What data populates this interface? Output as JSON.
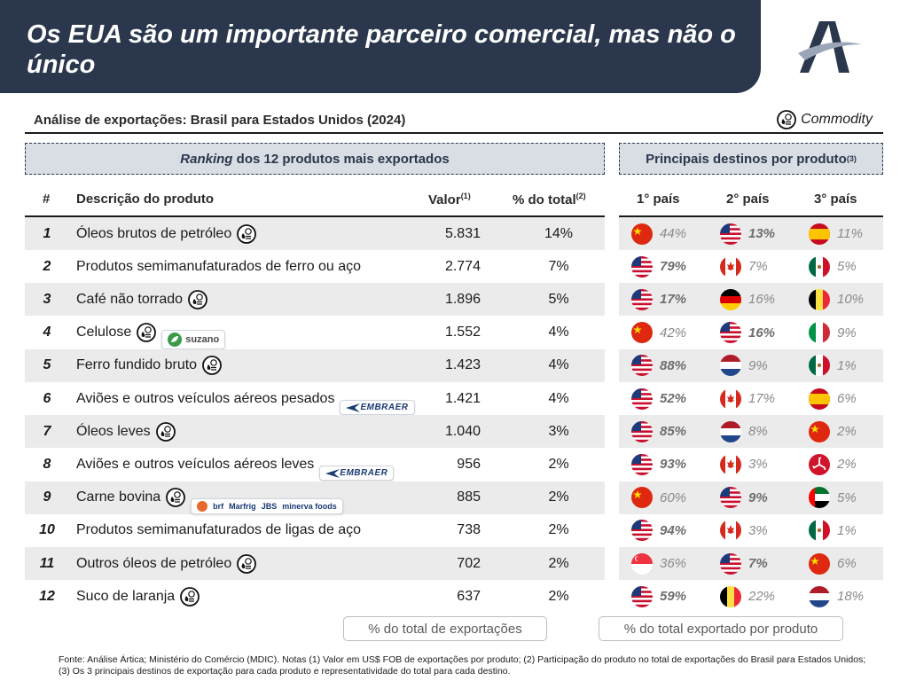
{
  "header": {
    "title": "Os EUA são um importante parceiro comercial, mas não o único"
  },
  "subtitle": "Análise de exportações: Brasil para Estados Unidos (2024)",
  "legend": {
    "commodity_label": "Commodity"
  },
  "ranking_section": {
    "title_italic": "Ranking",
    "title_rest": " dos 12 produtos mais exportados"
  },
  "destinations_section": {
    "title": "Principais destinos por produto",
    "note": "(3)"
  },
  "columns": {
    "rank": "#",
    "description": "Descrição do produto",
    "value": "Valor",
    "value_note": "(1)",
    "share": "% do total",
    "share_note": "(2)",
    "first": "1° país",
    "second": "2° país",
    "third": "3° país"
  },
  "products": [
    {
      "rank": "1",
      "name": "Óleos brutos de petróleo",
      "commodity": true,
      "value": "5.831",
      "share": "14%",
      "destinations": [
        {
          "flag": "china",
          "pct": "44%"
        },
        {
          "flag": "usa",
          "pct": "13%"
        },
        {
          "flag": "spain",
          "pct": "11%"
        }
      ]
    },
    {
      "rank": "2",
      "name": "Produtos semimanufaturados de ferro ou aço",
      "commodity": false,
      "value": "2.774",
      "share": "7%",
      "destinations": [
        {
          "flag": "usa",
          "pct": "79%"
        },
        {
          "flag": "canada",
          "pct": "7%"
        },
        {
          "flag": "mexico",
          "pct": "5%"
        }
      ]
    },
    {
      "rank": "3",
      "name": "Café não torrado",
      "commodity": true,
      "value": "1.896",
      "share": "5%",
      "destinations": [
        {
          "flag": "usa",
          "pct": "17%"
        },
        {
          "flag": "germany",
          "pct": "16%"
        },
        {
          "flag": "belgium",
          "pct": "10%"
        }
      ]
    },
    {
      "rank": "4",
      "name": "Celulose",
      "commodity": true,
      "brand": "suzano",
      "brand_label": "suzano",
      "value": "1.552",
      "share": "4%",
      "destinations": [
        {
          "flag": "china",
          "pct": "42%"
        },
        {
          "flag": "usa",
          "pct": "16%"
        },
        {
          "flag": "italy",
          "pct": "9%"
        }
      ]
    },
    {
      "rank": "5",
      "name": "Ferro fundido bruto",
      "commodity": true,
      "value": "1.423",
      "share": "4%",
      "destinations": [
        {
          "flag": "usa",
          "pct": "88%"
        },
        {
          "flag": "netherlands",
          "pct": "9%"
        },
        {
          "flag": "mexico",
          "pct": "1%"
        }
      ]
    },
    {
      "rank": "6",
      "name": "Aviões e outros veículos aéreos pesados",
      "commodity": false,
      "brand": "embraer",
      "brand_label": "EMBRAER",
      "value": "1.421",
      "share": "4%",
      "destinations": [
        {
          "flag": "usa",
          "pct": "52%"
        },
        {
          "flag": "canada",
          "pct": "17%"
        },
        {
          "flag": "spain",
          "pct": "6%"
        }
      ]
    },
    {
      "rank": "7",
      "name": "Óleos leves",
      "commodity": true,
      "value": "1.040",
      "share": "3%",
      "destinations": [
        {
          "flag": "usa",
          "pct": "85%"
        },
        {
          "flag": "netherlands",
          "pct": "8%"
        },
        {
          "flag": "china",
          "pct": "2%"
        }
      ]
    },
    {
      "rank": "8",
      "name": "Aviões e outros veículos aéreos leves",
      "commodity": false,
      "brand": "embraer",
      "brand_label": "EMBRAER",
      "value": "956",
      "share": "2%",
      "destinations": [
        {
          "flag": "usa",
          "pct": "93%"
        },
        {
          "flag": "canada",
          "pct": "3%"
        },
        {
          "flag": "isle-of-man",
          "pct": "2%"
        }
      ]
    },
    {
      "rank": "9",
      "name": "Carne bovina",
      "commodity": true,
      "brand": "group",
      "brand_labels": [
        "brf",
        "Marfrig",
        "JBS",
        "minerva foods"
      ],
      "value": "885",
      "share": "2%",
      "destinations": [
        {
          "flag": "china",
          "pct": "60%"
        },
        {
          "flag": "usa",
          "pct": "9%"
        },
        {
          "flag": "uae",
          "pct": "5%"
        }
      ]
    },
    {
      "rank": "10",
      "name": "Produtos semimanufaturados de ligas de aço",
      "commodity": false,
      "value": "738",
      "share": "2%",
      "destinations": [
        {
          "flag": "usa",
          "pct": "94%"
        },
        {
          "flag": "canada",
          "pct": "3%"
        },
        {
          "flag": "mexico",
          "pct": "1%"
        }
      ]
    },
    {
      "rank": "11",
      "name": "Outros óleos de petróleo",
      "commodity": true,
      "value": "702",
      "share": "2%",
      "destinations": [
        {
          "flag": "singapore",
          "pct": "36%"
        },
        {
          "flag": "usa",
          "pct": "7%"
        },
        {
          "flag": "china",
          "pct": "6%"
        }
      ]
    },
    {
      "rank": "12",
      "name": "Suco de laranja",
      "commodity": true,
      "value": "637",
      "share": "2%",
      "destinations": [
        {
          "flag": "usa",
          "pct": "59%"
        },
        {
          "flag": "belgium",
          "pct": "22%"
        },
        {
          "flag": "netherlands",
          "pct": "18%"
        }
      ]
    }
  ],
  "callouts": {
    "left": "% do total de exportações",
    "right": "% do total exportado por produto"
  },
  "footnote": "Fonte: Análise Ártica; Ministério do Comércio (MDIC). Notas (1) Valor em US$ FOB de exportações por produto; (2) Participação do produto no total de exportações do Brasil para Estados Unidos; (3) Os 3 principais destinos de exportação para cada produto e representatividade do total para cada destino.",
  "colors": {
    "navy": "#2b374c",
    "shade": "#ebebeb",
    "section": "#d9dde4"
  }
}
